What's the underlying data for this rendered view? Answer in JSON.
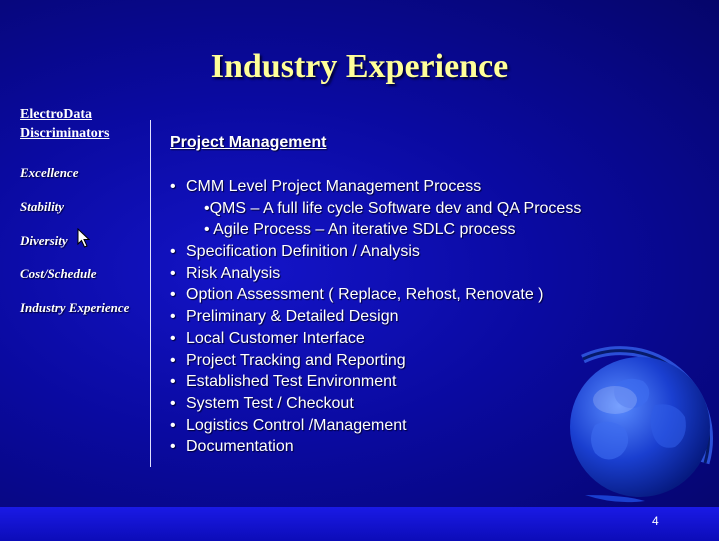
{
  "slide": {
    "title": "Industry Experience",
    "page_number": "4"
  },
  "sidebar": {
    "brand_line1": "ElectroData",
    "brand_line2": "Discriminators",
    "items": [
      {
        "label": "Excellence"
      },
      {
        "label": "Stability"
      },
      {
        "label": "Diversity"
      },
      {
        "label": "Cost/Schedule"
      },
      {
        "label": "Industry Experience"
      }
    ]
  },
  "content": {
    "heading": "Project Management",
    "bullets": [
      {
        "text": "CMM Level Project Management Process"
      },
      {
        "text": "•QMS – A full life cycle Software dev and QA Process"
      },
      {
        "text": "• Agile Process – An iterative SDLC process"
      },
      {
        "text": "Specification Definition / Analysis"
      },
      {
        "text": "Risk Analysis"
      },
      {
        "text": "Option Assessment ( Replace, Rehost, Renovate )"
      },
      {
        "text": "Preliminary & Detailed Design"
      },
      {
        "text": "Local Customer Interface"
      },
      {
        "text": "Project Tracking and Reporting"
      },
      {
        "text": "Established Test Environment"
      },
      {
        "text": "System Test / Checkout"
      },
      {
        "text": "Logistics Control /Management"
      },
      {
        "text": "Documentation"
      }
    ]
  },
  "icons": {
    "globe": "globe-icon",
    "cursor": "mouse-pointer-icon"
  },
  "colors": {
    "title": "#ffff99",
    "background": "#0a0aa0",
    "text": "#ffffff"
  }
}
